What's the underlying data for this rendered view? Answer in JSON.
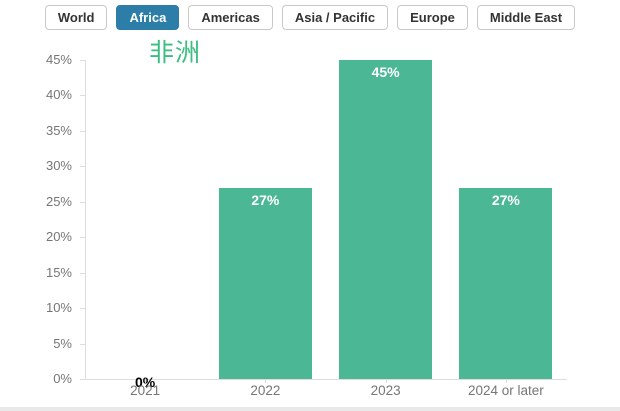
{
  "tabs": {
    "items": [
      {
        "label": "World",
        "active": false
      },
      {
        "label": "Africa",
        "active": true
      },
      {
        "label": "Americas",
        "active": false
      },
      {
        "label": "Asia / Pacific",
        "active": false
      },
      {
        "label": "Europe",
        "active": false
      },
      {
        "label": "Middle East",
        "active": false
      }
    ]
  },
  "chart_data": {
    "type": "bar",
    "title": "非洲",
    "categories": [
      "2021",
      "2022",
      "2023",
      "2024 or later"
    ],
    "values": [
      0,
      27,
      45,
      27
    ],
    "data_labels": [
      "0%",
      "27%",
      "45%",
      "27%"
    ],
    "xlabel": "",
    "ylabel": "",
    "ylim": [
      0,
      45
    ],
    "ytick_step": 5,
    "ytick_suffix": "%",
    "grid": false,
    "legend": false
  },
  "colors": {
    "bar": "#4cb794",
    "title": "#3dbd81",
    "active_tab": "#2c7da7",
    "axis": "#dddddd",
    "tick_label": "#767676",
    "bar_label_inside": "#ffffff",
    "bar_label_zero": "#000000"
  }
}
